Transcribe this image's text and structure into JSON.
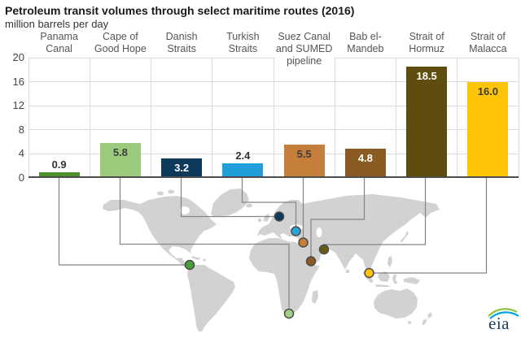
{
  "title": "Petroleum transit volumes through select maritime routes (2016)",
  "subtitle": "million barrels per day",
  "watermark": "eia",
  "chart_data": {
    "type": "bar",
    "title": "Petroleum transit volumes through select maritime routes (2016)",
    "ylabel": "million barrels per day",
    "categories": [
      "Panama Canal",
      "Cape of Good Hope",
      "Danish Straits",
      "Turkish Straits",
      "Suez Canal and SUMED pipeline",
      "Bab el-Mandeb",
      "Strait of Hormuz",
      "Strait of Malacca"
    ],
    "values": [
      0.9,
      5.8,
      3.2,
      2.4,
      5.5,
      4.8,
      18.5,
      16.0
    ],
    "value_labels": [
      "0.9",
      "5.8",
      "3.2",
      "2.4",
      "5.5",
      "4.8",
      "18.5",
      "16.0"
    ],
    "bar_colors": [
      "#4a8f28",
      "#9ccb7d",
      "#0d3a5b",
      "#1f9ed9",
      "#c67f3a",
      "#8a5c24",
      "#5e4d0e",
      "#fdc408"
    ],
    "marker_colors": [
      "#44a035",
      "#a3d189",
      "#0d3a5b",
      "#29a5dc",
      "#c67f3a",
      "#8a5c24",
      "#6b5a14",
      "#fdc408"
    ],
    "value_label_inside": [
      false,
      true,
      true,
      false,
      true,
      true,
      true,
      true
    ],
    "value_label_colors": [
      "#333333",
      "#3d3d3d",
      "#ffffff",
      "#333333",
      "#3d3d3d",
      "#ffffff",
      "#ffffff",
      "#3d3d3d"
    ],
    "yticks": [
      0,
      4,
      8,
      12,
      16,
      20
    ],
    "ylim": [
      0,
      20
    ],
    "grid": true,
    "legend": "none",
    "annotations": "each bar is linked by a gray leader line to a colored marker showing the route location on a gray world map"
  }
}
